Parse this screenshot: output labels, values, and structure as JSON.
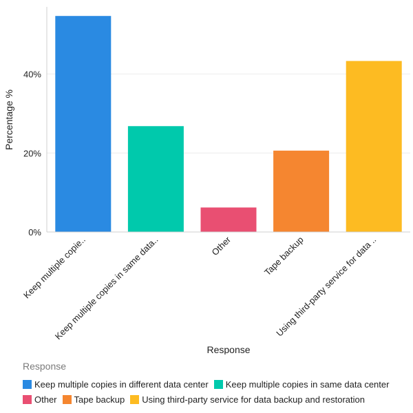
{
  "chart_data": {
    "type": "bar",
    "categories": [
      "Keep multiple copies in different data center",
      "Keep multiple copies in same data center",
      "Other",
      "Tape backup",
      "Using third-party service for data backup and restoration"
    ],
    "tick_labels": [
      "Keep multiple copie..",
      "Keep multiple copies in same data..",
      "Other",
      "Tape backup",
      "Using third-party service for data .."
    ],
    "values": [
      54.7,
      26.8,
      6.2,
      20.6,
      43.3
    ],
    "colors": [
      "#2a8ae2",
      "#00c9ac",
      "#e94f72",
      "#f58630",
      "#fdbb22"
    ],
    "xlabel": "Response",
    "ylabel": "Percentage %",
    "ylim": [
      0,
      57
    ],
    "yticks": [
      0,
      20,
      40
    ],
    "ytick_labels": [
      "0%",
      "20%",
      "40%"
    ],
    "grid": true,
    "legend_title": "Response",
    "legend_placement": "bottom"
  }
}
